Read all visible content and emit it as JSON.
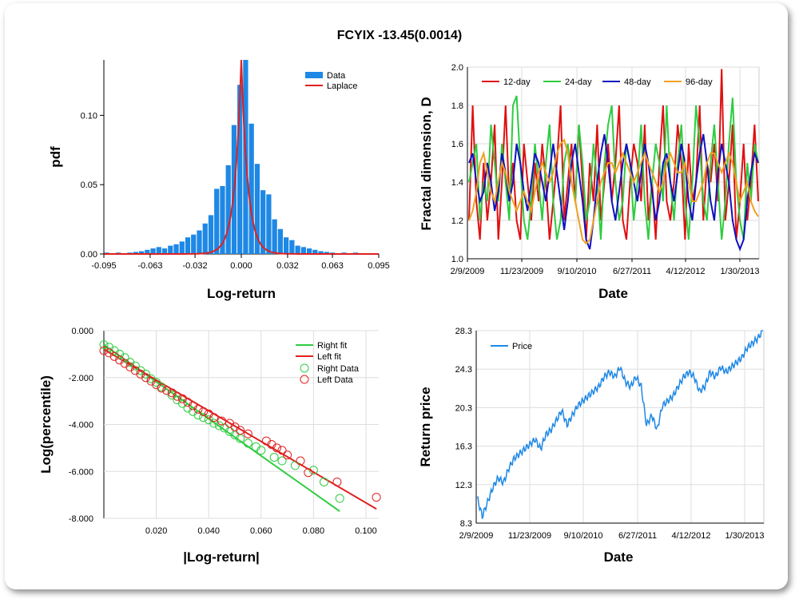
{
  "title": "FCYIX -13.45(0.0014)",
  "chart_data": [
    {
      "type": "bar",
      "xlabel": "Log-return",
      "ylabel": "pdf",
      "xticks": [
        "-0.095",
        "-0.063",
        "-0.032",
        "0.000",
        "0.032",
        "0.063",
        "0.095"
      ],
      "xlim": [
        -0.095,
        0.095
      ],
      "yticks": [
        "0.00",
        "0.05",
        "0.10"
      ],
      "ylim": [
        0,
        0.14
      ],
      "legend": [
        "Data",
        "Laplace"
      ],
      "legend_position": "top-right",
      "colors": {
        "Data": "#1e88e5",
        "Laplace": "#e02020"
      },
      "bins": [
        [
          -0.093,
          0.001
        ],
        [
          -0.089,
          0.0005
        ],
        [
          -0.085,
          0.001
        ],
        [
          -0.081,
          0.0005
        ],
        [
          -0.077,
          0.001
        ],
        [
          -0.073,
          0.0015
        ],
        [
          -0.069,
          0.002
        ],
        [
          -0.065,
          0.003
        ],
        [
          -0.061,
          0.004
        ],
        [
          -0.057,
          0.005
        ],
        [
          -0.053,
          0.004
        ],
        [
          -0.049,
          0.006
        ],
        [
          -0.045,
          0.007
        ],
        [
          -0.041,
          0.009
        ],
        [
          -0.037,
          0.012
        ],
        [
          -0.033,
          0.014
        ],
        [
          -0.029,
          0.017
        ],
        [
          -0.025,
          0.022
        ],
        [
          -0.021,
          0.028
        ],
        [
          -0.017,
          0.047
        ],
        [
          -0.013,
          0.049
        ],
        [
          -0.009,
          0.064
        ],
        [
          -0.005,
          0.093
        ],
        [
          -0.001,
          0.122
        ],
        [
          0.003,
          0.14
        ],
        [
          0.007,
          0.094
        ],
        [
          0.011,
          0.065
        ],
        [
          0.015,
          0.046
        ],
        [
          0.019,
          0.043
        ],
        [
          0.023,
          0.025
        ],
        [
          0.027,
          0.018
        ],
        [
          0.031,
          0.012
        ],
        [
          0.035,
          0.01
        ],
        [
          0.039,
          0.006
        ],
        [
          0.043,
          0.005
        ],
        [
          0.047,
          0.004
        ],
        [
          0.051,
          0.003
        ],
        [
          0.055,
          0.002
        ],
        [
          0.059,
          0.0015
        ],
        [
          0.063,
          0.001
        ],
        [
          0.067,
          0.0005
        ],
        [
          0.071,
          0.001
        ],
        [
          0.075,
          0.0005
        ],
        [
          0.079,
          0.001
        ],
        [
          0.083,
          0.0005
        ],
        [
          0.087,
          0.0005
        ]
      ],
      "laplace": {
        "mu": 0.0,
        "b": 0.0045
      }
    },
    {
      "type": "line",
      "xlabel": "Date",
      "ylabel": "Fractal dimension, D",
      "xticks": [
        "2/9/2009",
        "11/23/2009",
        "9/10/2010",
        "6/27/2011",
        "4/12/2012",
        "1/30/2013"
      ],
      "yticks": [
        "1.0",
        "1.2",
        "1.4",
        "1.6",
        "1.8",
        "2.0"
      ],
      "ylim": [
        1.0,
        2.0
      ],
      "legend_position": "top",
      "series": [
        {
          "name": "12-day",
          "color": "#e01010",
          "values": [
            1.2,
            1.8,
            1.3,
            1.1,
            1.5,
            1.2,
            1.4,
            1.7,
            1.1,
            1.4,
            1.8,
            1.3,
            1.5,
            1.2,
            1.1,
            1.6,
            1.4,
            1.2,
            1.5,
            1.3,
            1.6,
            1.4,
            1.1,
            1.3,
            1.5,
            1.8,
            1.2,
            1.4,
            1.6,
            1.3,
            1.7,
            1.4,
            1.1,
            1.5,
            1.3,
            1.7,
            1.2,
            1.4,
            1.6,
            1.3,
            1.5,
            1.8,
            1.2,
            1.1,
            1.4,
            1.6,
            1.5,
            1.3,
            1.7,
            1.2,
            1.4,
            1.1,
            1.5,
            1.8,
            1.3,
            1.2,
            1.4,
            1.7,
            1.5,
            1.1,
            1.6,
            1.3,
            1.4,
            1.8,
            1.2,
            1.5,
            1.4,
            1.6,
            1.3,
            1.99,
            1.2,
            1.4,
            1.7,
            1.1,
            1.3,
            1.6,
            1.2,
            1.4,
            1.7,
            1.3
          ]
        },
        {
          "name": "24-day",
          "color": "#2ecc40",
          "values": [
            1.4,
            1.5,
            1.6,
            1.2,
            1.4,
            1.3,
            1.7,
            1.5,
            1.3,
            1.6,
            1.4,
            1.2,
            1.8,
            1.85,
            1.5,
            1.2,
            1.1,
            1.3,
            1.6,
            1.4,
            1.2,
            1.5,
            1.7,
            1.3,
            1.1,
            1.2,
            1.5,
            1.6,
            1.4,
            1.3,
            1.7,
            1.5,
            1.2,
            1.3,
            1.6,
            1.4,
            1.1,
            1.5,
            1.7,
            1.8,
            1.4,
            1.2,
            1.3,
            1.6,
            1.5,
            1.2,
            1.4,
            1.7,
            1.3,
            1.1,
            1.4,
            1.6,
            1.5,
            1.3,
            1.8,
            1.4,
            1.2,
            1.5,
            1.7,
            1.3,
            1.1,
            1.4,
            1.8,
            1.6,
            1.3,
            1.2,
            1.5,
            1.7,
            1.4,
            1.1,
            1.3,
            1.6,
            1.84,
            1.4,
            1.2,
            1.1,
            1.5,
            1.3,
            1.6,
            1.5
          ]
        },
        {
          "name": "48-day",
          "color": "#1010c0",
          "values": [
            1.5,
            1.55,
            1.4,
            1.3,
            1.35,
            1.5,
            1.4,
            1.25,
            1.35,
            1.55,
            1.45,
            1.3,
            1.4,
            1.6,
            1.5,
            1.35,
            1.25,
            1.4,
            1.55,
            1.5,
            1.4,
            1.3,
            1.45,
            1.6,
            1.45,
            1.3,
            1.15,
            1.3,
            1.5,
            1.6,
            1.45,
            1.3,
            1.1,
            1.05,
            1.2,
            1.4,
            1.55,
            1.65,
            1.5,
            1.3,
            1.2,
            1.35,
            1.5,
            1.6,
            1.5,
            1.4,
            1.3,
            1.45,
            1.6,
            1.5,
            1.35,
            1.2,
            1.3,
            1.5,
            1.55,
            1.4,
            1.3,
            1.45,
            1.6,
            1.5,
            1.3,
            1.2,
            1.4,
            1.55,
            1.65,
            1.5,
            1.3,
            1.2,
            1.45,
            1.6,
            1.5,
            1.4,
            1.2,
            1.1,
            1.05,
            1.1,
            1.3,
            1.45,
            1.55,
            1.5
          ]
        },
        {
          "name": "96-day",
          "color": "#f0a020",
          "values": [
            1.2,
            1.25,
            1.35,
            1.5,
            1.55,
            1.45,
            1.35,
            1.3,
            1.4,
            1.5,
            1.45,
            1.35,
            1.3,
            1.25,
            1.3,
            1.35,
            1.3,
            1.25,
            1.35,
            1.45,
            1.5,
            1.45,
            1.4,
            1.45,
            1.55,
            1.6,
            1.62,
            1.55,
            1.4,
            1.3,
            1.2,
            1.1,
            1.08,
            1.1,
            1.2,
            1.3,
            1.4,
            1.45,
            1.5,
            1.5,
            1.45,
            1.5,
            1.55,
            1.5,
            1.45,
            1.4,
            1.45,
            1.5,
            1.55,
            1.5,
            1.45,
            1.4,
            1.35,
            1.4,
            1.5,
            1.55,
            1.5,
            1.45,
            1.45,
            1.5,
            1.4,
            1.3,
            1.3,
            1.35,
            1.4,
            1.5,
            1.55,
            1.55,
            1.5,
            1.45,
            1.5,
            1.55,
            1.5,
            1.4,
            1.3,
            1.35,
            1.4,
            1.3,
            1.25,
            1.22
          ]
        }
      ]
    },
    {
      "type": "scatter",
      "xlabel": "|Log-return|",
      "ylabel": "Log(percentile)",
      "xticks": [
        "0.020",
        "0.040",
        "0.060",
        "0.080",
        "0.100"
      ],
      "xlim": [
        0,
        0.105
      ],
      "yticks": [
        "0.000",
        "-2.000",
        "-4.000",
        "-6.000",
        "-8.000"
      ],
      "ylim": [
        -8,
        0
      ],
      "legend": [
        "Right fit",
        "Left fit",
        "Right Data",
        "Left Data"
      ],
      "legend_position": "top-right",
      "colors": {
        "right": "#2ecc40",
        "left": "#e02020"
      },
      "right_fit": [
        [
          0,
          -0.6
        ],
        [
          0.09,
          -7.7
        ]
      ],
      "left_fit": [
        [
          0,
          -0.8
        ],
        [
          0.104,
          -7.6
        ]
      ],
      "right_data": [
        [
          0,
          -0.6
        ],
        [
          0.002,
          -0.7
        ],
        [
          0.004,
          -0.85
        ],
        [
          0.006,
          -1.0
        ],
        [
          0.008,
          -1.15
        ],
        [
          0.01,
          -1.35
        ],
        [
          0.012,
          -1.5
        ],
        [
          0.014,
          -1.7
        ],
        [
          0.016,
          -1.85
        ],
        [
          0.018,
          -2.05
        ],
        [
          0.02,
          -2.2
        ],
        [
          0.022,
          -2.4
        ],
        [
          0.024,
          -2.55
        ],
        [
          0.026,
          -2.75
        ],
        [
          0.028,
          -2.95
        ],
        [
          0.03,
          -3.1
        ],
        [
          0.032,
          -3.3
        ],
        [
          0.034,
          -3.45
        ],
        [
          0.036,
          -3.6
        ],
        [
          0.038,
          -3.7
        ],
        [
          0.04,
          -3.8
        ],
        [
          0.042,
          -3.95
        ],
        [
          0.044,
          -4.05
        ],
        [
          0.046,
          -4.15
        ],
        [
          0.048,
          -4.3
        ],
        [
          0.05,
          -4.45
        ],
        [
          0.052,
          -4.6
        ],
        [
          0.055,
          -4.8
        ],
        [
          0.058,
          -4.95
        ],
        [
          0.06,
          -5.1
        ],
        [
          0.065,
          -5.4
        ],
        [
          0.068,
          -5.55
        ],
        [
          0.073,
          -5.75
        ],
        [
          0.08,
          -5.95
        ],
        [
          0.084,
          -6.45
        ],
        [
          0.09,
          -7.15
        ]
      ],
      "left_data": [
        [
          0,
          -0.85
        ],
        [
          0.002,
          -0.95
        ],
        [
          0.004,
          -1.1
        ],
        [
          0.006,
          -1.25
        ],
        [
          0.008,
          -1.4
        ],
        [
          0.01,
          -1.55
        ],
        [
          0.012,
          -1.7
        ],
        [
          0.014,
          -1.85
        ],
        [
          0.016,
          -2.0
        ],
        [
          0.018,
          -2.15
        ],
        [
          0.02,
          -2.3
        ],
        [
          0.022,
          -2.45
        ],
        [
          0.024,
          -2.55
        ],
        [
          0.026,
          -2.65
        ],
        [
          0.028,
          -2.8
        ],
        [
          0.03,
          -2.9
        ],
        [
          0.032,
          -3.05
        ],
        [
          0.034,
          -3.2
        ],
        [
          0.036,
          -3.35
        ],
        [
          0.038,
          -3.45
        ],
        [
          0.04,
          -3.55
        ],
        [
          0.042,
          -3.7
        ],
        [
          0.045,
          -3.85
        ],
        [
          0.048,
          -3.95
        ],
        [
          0.05,
          -4.1
        ],
        [
          0.052,
          -4.25
        ],
        [
          0.055,
          -4.4
        ],
        [
          0.062,
          -4.7
        ],
        [
          0.064,
          -4.85
        ],
        [
          0.066,
          -5.0
        ],
        [
          0.068,
          -5.1
        ],
        [
          0.07,
          -5.3
        ],
        [
          0.075,
          -5.55
        ],
        [
          0.078,
          -6.05
        ],
        [
          0.089,
          -6.45
        ],
        [
          0.104,
          -7.1
        ]
      ]
    },
    {
      "type": "line",
      "xlabel": "Date",
      "ylabel": "Return price",
      "xticks": [
        "2/9/2009",
        "11/23/2009",
        "9/10/2010",
        "6/27/2011",
        "4/12/2012",
        "1/30/2013"
      ],
      "yticks": [
        "28.3",
        "24.3",
        "20.3",
        "16.3",
        "12.3",
        "8.3"
      ],
      "ylim": [
        8.3,
        28.3
      ],
      "legend_position": "top-left",
      "series": [
        {
          "name": "Price",
          "color": "#1e88e5",
          "values": [
            11.0,
            9.0,
            10.5,
            12.0,
            13.0,
            12.5,
            14.0,
            15.0,
            15.5,
            16.0,
            16.5,
            17.0,
            16.0,
            17.5,
            18.0,
            19.0,
            20.0,
            18.5,
            19.5,
            20.5,
            21.0,
            21.5,
            22.0,
            22.5,
            23.5,
            24.0,
            23.5,
            24.5,
            23.0,
            22.5,
            23.5,
            22.5,
            18.5,
            19.5,
            18.0,
            20.5,
            21.0,
            21.5,
            22.5,
            23.5,
            24.0,
            23.5,
            22.0,
            22.5,
            24.0,
            23.5,
            24.5,
            24.0,
            24.5,
            25.0,
            25.5,
            26.5,
            27.0,
            27.5,
            28.3
          ]
        }
      ]
    }
  ]
}
